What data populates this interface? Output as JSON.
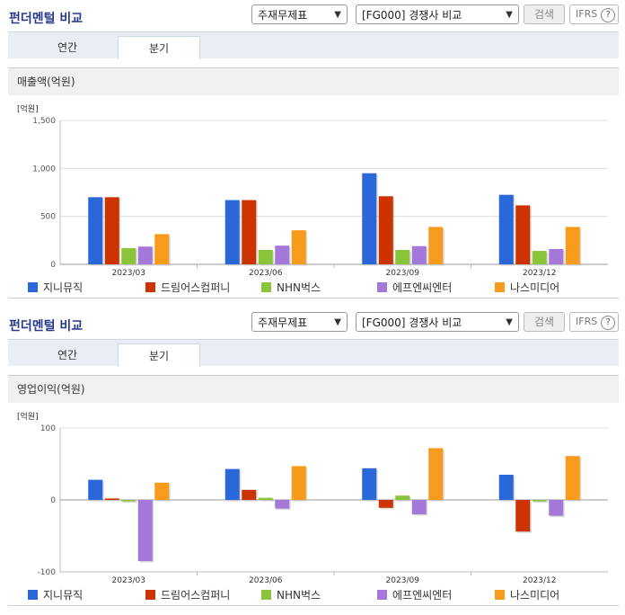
{
  "colors": {
    "s0": "#2a67d8",
    "s1": "#cc3300",
    "s2": "#8ac43a",
    "s3": "#a378d8",
    "s4": "#f79b1d",
    "title": "#2a3a8a"
  },
  "panels": [
    {
      "header": {
        "title": "펀더멘털 비교",
        "select1": "주재무제표",
        "select2": "[FG000] 경쟁사 비교",
        "search_label": "검색",
        "ifrs_label": "IFRS",
        "help_glyph": "?"
      },
      "tabs": [
        {
          "label": "연간",
          "active": false
        },
        {
          "label": "분기",
          "active": true
        }
      ],
      "chart_title": "매출액(억원)",
      "chart_data": {
        "type": "bar",
        "unit_label": "[억원]",
        "categories": [
          "2023/03",
          "2023/06",
          "2023/09",
          "2023/12"
        ],
        "ylim": [
          0,
          1500
        ],
        "yticks": [
          0,
          500,
          1000,
          1500
        ],
        "ytick_labels": [
          "0",
          "500",
          "1,000",
          "1,500"
        ],
        "series": [
          {
            "name": "지니뮤직",
            "values": [
              700,
              670,
              950,
              725
            ]
          },
          {
            "name": "드림어스컴퍼니",
            "values": [
              700,
              670,
              710,
              615
            ]
          },
          {
            "name": "NHN벅스",
            "values": [
              170,
              150,
              150,
              140
            ]
          },
          {
            "name": "에프엔씨엔터",
            "values": [
              185,
              195,
              190,
              160
            ]
          },
          {
            "name": "나스미디어",
            "values": [
              315,
              355,
              390,
              390
            ]
          }
        ],
        "legend_position": "bottom"
      }
    },
    {
      "header": {
        "title": "펀더멘털 비교",
        "select1": "주재무제표",
        "select2": "[FG000] 경쟁사 비교",
        "search_label": "검색",
        "ifrs_label": "IFRS",
        "help_glyph": "?"
      },
      "tabs": [
        {
          "label": "연간",
          "active": false
        },
        {
          "label": "분기",
          "active": true
        }
      ],
      "chart_title": "영업이익(억원)",
      "chart_data": {
        "type": "bar",
        "unit_label": "[억원]",
        "categories": [
          "2023/03",
          "2023/06",
          "2023/09",
          "2023/12"
        ],
        "ylim": [
          -100,
          100
        ],
        "yticks": [
          -100,
          0,
          100
        ],
        "ytick_labels": [
          "-100",
          "0",
          "100"
        ],
        "series": [
          {
            "name": "지니뮤직",
            "values": [
              28,
              43,
              44,
              35
            ]
          },
          {
            "name": "드림어스컴퍼니",
            "values": [
              2,
              14,
              -11,
              -44
            ]
          },
          {
            "name": "NHN벅스",
            "values": [
              -2,
              3,
              6,
              -2
            ]
          },
          {
            "name": "에프엔씨엔터",
            "values": [
              -85,
              -12,
              -20,
              -22
            ]
          },
          {
            "name": "나스미디어",
            "values": [
              24,
              47,
              72,
              61
            ]
          }
        ],
        "legend_position": "bottom"
      }
    }
  ]
}
